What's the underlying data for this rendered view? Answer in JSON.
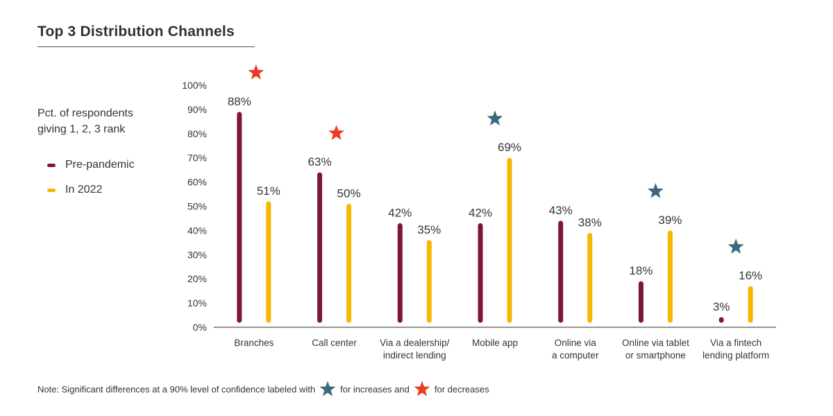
{
  "title": "Top 3 Distribution Channels",
  "ylabel": "Pct. of respondents giving 1, 2, 3 rank",
  "legend": [
    {
      "name": "Pre-pandemic",
      "color": "#7b1636"
    },
    {
      "name": "In 2022",
      "color": "#f5b700"
    }
  ],
  "note": {
    "text1": "Note: Significant differences at a 90% level of confidence labeled with",
    "text2": "for increases and",
    "text3": "for decreases",
    "increase_color": "#3a6a7c",
    "decrease_color": "#ee3b1f"
  },
  "chart_data": {
    "type": "bar",
    "ylim": [
      0,
      100
    ],
    "yticks": [
      "0%",
      "10%",
      "20%",
      "30%",
      "40%",
      "50%",
      "60%",
      "70%",
      "80%",
      "90%",
      "100%"
    ],
    "categories": [
      [
        "Branches"
      ],
      [
        "Call center"
      ],
      [
        "Via a dealership/",
        "indirect lending"
      ],
      [
        "Mobile app"
      ],
      [
        "Online via",
        "a computer"
      ],
      [
        "Online via tablet",
        "or smartphone"
      ],
      [
        "Via a fintech",
        "lending platform"
      ]
    ],
    "series": [
      {
        "name": "Pre-pandemic",
        "color": "#7b1636",
        "values": [
          88,
          63,
          42,
          42,
          43,
          18,
          3
        ],
        "labels": [
          "88%",
          "63%",
          "42%",
          "42%",
          "43%",
          "18%",
          "3%"
        ]
      },
      {
        "name": "In 2022",
        "color": "#f5b700",
        "values": [
          51,
          50,
          35,
          69,
          38,
          39,
          16
        ],
        "labels": [
          "51%",
          "50%",
          "35%",
          "69%",
          "38%",
          "39%",
          "16%"
        ]
      }
    ],
    "significance": [
      "decrease",
      "decrease",
      null,
      "increase",
      null,
      "increase",
      "increase"
    ]
  }
}
